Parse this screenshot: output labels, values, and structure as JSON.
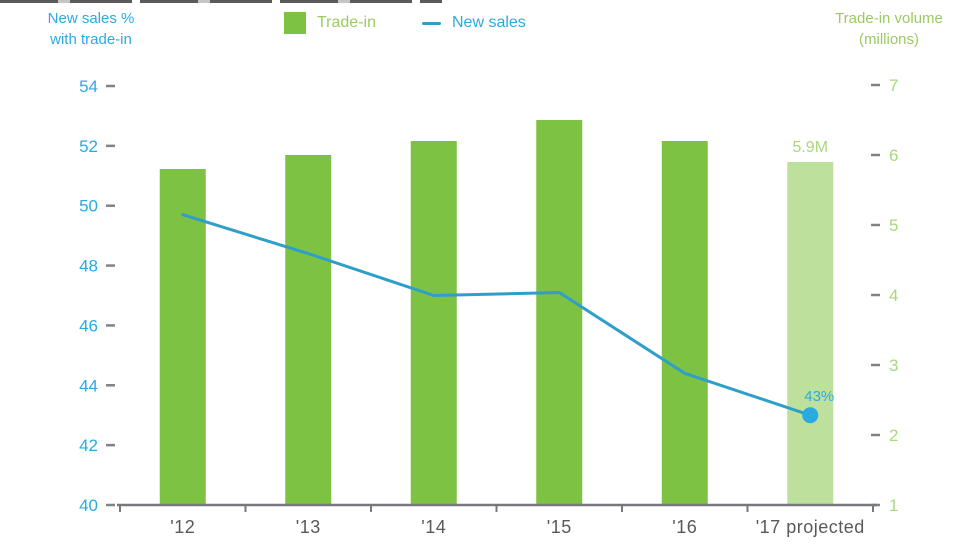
{
  "left_axis": {
    "title_line1": "New sales %",
    "title_line2": "with trade-in"
  },
  "right_axis": {
    "title_line1": "Trade-in volume",
    "title_line2": "(millions)"
  },
  "legend": {
    "trade_in_label": "Trade-in",
    "new_sales_label": "New sales"
  },
  "chart_data": {
    "type": "bar+line combo",
    "categories": [
      "'12",
      "'13",
      "'14",
      "'15",
      "'16",
      "'17 projected"
    ],
    "series": [
      {
        "name": "Trade-in",
        "type": "bar",
        "axis": "right",
        "unit": "millions",
        "values": [
          5.8,
          6.0,
          6.2,
          6.5,
          6.2,
          5.9
        ],
        "highlight_last": true
      },
      {
        "name": "New sales",
        "type": "line",
        "axis": "left",
        "unit": "%",
        "values": [
          49.7,
          48.4,
          47.0,
          47.1,
          44.4,
          43.0
        ]
      }
    ],
    "left_axis": {
      "label": "New sales % with trade-in",
      "range": [
        40,
        54
      ],
      "ticks": [
        54,
        52,
        50,
        48,
        46,
        44,
        42,
        40
      ]
    },
    "right_axis": {
      "label": "Trade-in volume (millions)",
      "range": [
        1,
        7
      ],
      "ticks": [
        7,
        6,
        5,
        4,
        3,
        2,
        1
      ]
    },
    "annotations": [
      {
        "text": "5.9M",
        "target": "bar '17 projected",
        "color_role": "green"
      },
      {
        "text": "43%",
        "target": "line end '17 projected",
        "color_role": "blue"
      }
    ],
    "legend_position": "top-center",
    "grid": false,
    "colors": {
      "bar": "#7DC242",
      "bar_projected": "#BDE09C",
      "line": "#2E9FC9",
      "dot": "#29ABE2",
      "blue_text": "#29ABE2",
      "green_text": "#9BCB60",
      "green_tick_text": "#A9D77E",
      "axis_line": "#77787B",
      "x_label": "#58595B",
      "tick_dash": "#808285"
    }
  }
}
